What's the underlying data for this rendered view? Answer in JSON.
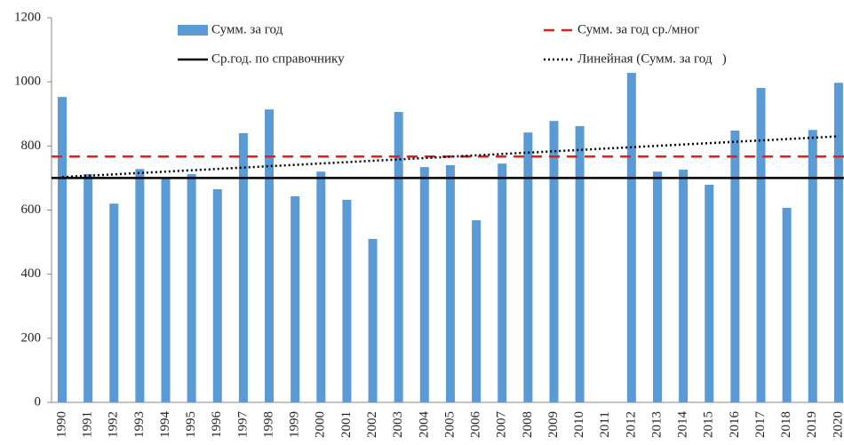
{
  "chart_data": {
    "type": "bar",
    "categories": [
      "1990",
      "1991",
      "1992",
      "1993",
      "1994",
      "1995",
      "1996",
      "1997",
      "1998",
      "1999",
      "2000",
      "2001",
      "2002",
      "2003",
      "2004",
      "2005",
      "2006",
      "2007",
      "2008",
      "2009",
      "2010",
      "2011",
      "2012",
      "2013",
      "2014",
      "2015",
      "2016",
      "2017",
      "2018",
      "2019",
      "2020"
    ],
    "series": [
      {
        "name": "Сумм. за год",
        "color": "#5b9bd5",
        "values": [
          953,
          712,
          620,
          728,
          700,
          712,
          665,
          840,
          914,
          643,
          720,
          632,
          510,
          906,
          734,
          740,
          568,
          745,
          842,
          878,
          862,
          null,
          1028,
          720,
          726,
          679,
          848,
          981,
          607,
          850,
          997
        ]
      }
    ],
    "reference_lines": [
      {
        "name": "Сумм. за год ср./мног",
        "color": "#e02020",
        "style": "dashed",
        "value": 767
      },
      {
        "name": "Ср.год. по справочнику",
        "color": "#000000",
        "style": "solid",
        "value": 700
      }
    ],
    "trend": {
      "name": "Линейная (Сумм. за год   )",
      "color": "#000000",
      "style": "dotted",
      "start": 703,
      "end": 830
    },
    "ylim": [
      0,
      1200
    ],
    "yticks": [
      0,
      200,
      400,
      600,
      800,
      1000,
      1200
    ],
    "grid": false
  }
}
